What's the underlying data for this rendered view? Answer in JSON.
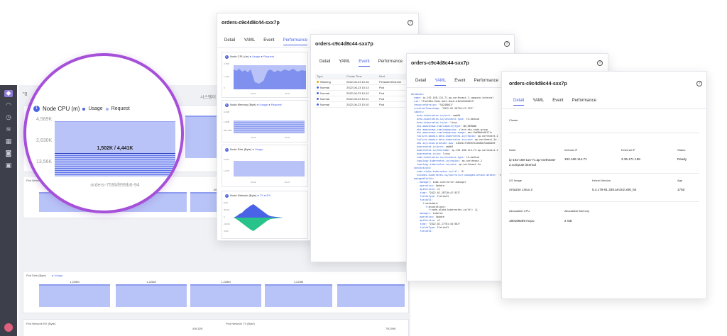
{
  "colors": {
    "accent": "#4a63e6",
    "lens_border": "#a64fd9",
    "chart_fill": "#b9c3f8",
    "request_dot": "#a5b3f5",
    "warning": "#f2a900",
    "normal": "#4a63e6",
    "rail": "#3d3f4b"
  },
  "rail": {
    "icons": [
      "logo-icon",
      "dashboard-icon",
      "clock-icon",
      "stack-icon",
      "chart-icon",
      "bell-icon",
      "settings-icon"
    ]
  },
  "dashboard": {
    "header": "\"0",
    "right_label": "시스템이",
    "panel_memory": {
      "title": "Pod Memory (Byte)",
      "legend": "● Usage ● Request",
      "values": [
        "401.31M / 536.87M",
        "401.31M / 536.87M",
        "401.31M / 536.87M"
      ]
    },
    "panel_disk": {
      "title": "Pod Disk (Byte)",
      "legend": "● Usage",
      "values": [
        "1,228M",
        "1,228M",
        "1,228M",
        "1,228M"
      ]
    },
    "panel_network": {
      "title": "Pod Network RX (Byte)",
      "title2": "Pod Network TX (Byte)",
      "values": [
        "406,52K",
        "750,59K"
      ]
    }
  },
  "lens": {
    "title": "Node CPU (m)",
    "legend_usage": "Usage",
    "legend_request": "Request",
    "yticks": [
      "4,589K",
      "2,630K",
      "13,56K"
    ],
    "value_label": "1,502K / 4,441K",
    "pod_name": "orders-759bf899b6-94"
  },
  "popup_perf": {
    "title": "orders-c9c4d8c44-sxx7p",
    "help": "?",
    "tabs": [
      "Detail",
      "YAML",
      "Event",
      "Performance"
    ],
    "charts": [
      {
        "num": "1",
        "title": "Node CPU (m)",
        "legend": "● Usage ● Request",
        "yticks": [
          "2.79K",
          "1.34K",
          "0"
        ],
        "xticks": [
          "10:32",
          "10:37"
        ]
      },
      {
        "num": "2",
        "title": "Node Memory (Byte)",
        "legend": "● Usage ● Request",
        "yticks": [
          "3.24B",
          "1.66B",
          "831.45M"
        ],
        "xticks": [
          "10:32",
          "10:37"
        ]
      },
      {
        "num": "3",
        "title": "Node Disk (Byte)",
        "legend": "● Usage",
        "yticks": [
          "2.05K",
          "1.07K"
        ],
        "xticks": [
          "10:32",
          "10:37"
        ]
      },
      {
        "num": "4",
        "title": "Node Network (Byte)",
        "legend": "● TX ● RX",
        "yticks": [
          "9.6K",
          "40.9K",
          "0",
          "-40.9K",
          "-9.6K"
        ],
        "xticks": [
          "10:32",
          "10:37"
        ]
      }
    ]
  },
  "popup_event": {
    "title": "orders-c9c4d8c44-sxx7p",
    "help": "?",
    "tabs": [
      "Detail",
      "YAML",
      "Event",
      "Performance"
    ],
    "columns": [
      "Type",
      "Create Time",
      "Kind"
    ],
    "rows": [
      {
        "type": "Warning",
        "time": "2022-06-23 10:16",
        "kind": "PersistentVolume"
      },
      {
        "type": "Normal",
        "time": "2022-06-23 10:13",
        "kind": "Pod"
      },
      {
        "type": "Normal",
        "time": "2022-06-23 10:12",
        "kind": "Pod"
      },
      {
        "type": "Normal",
        "time": "2022-06-23 10:11",
        "kind": "Pod"
      },
      {
        "type": "Normal",
        "time": "2022-06-23 10:10",
        "kind": "Pod"
      }
    ]
  },
  "popup_yaml": {
    "title": "orders-c9c4d8c44-sxx7p",
    "help": "?",
    "tabs": [
      "Detail",
      "YAML",
      "Event",
      "Performance"
    ],
    "lines": [
      "metadata:",
      "  name: ip-192-168-114-71.ap-northeast-2.compute.internal",
      "  uid: 77cbf68a-9d4e-4dc1-8ac0-d4b9d3d0b619",
      "  resourceVersion: \"54248841\"",
      "  creationTimestamp: \"2022-02-28T10:47:33Z\"",
      "  labels:",
      "    beta.kubernetes.io/arch: amd64",
      "    beta.kubernetes.io/instance-type: t3.medium",
      "    beta.kubernetes.io/os: linux",
      "    eks.amazonaws.com/capacityType: ON_DEMAND",
      "    eks.amazonaws.com/nodegroup: clara-eks-node-group",
      "    eks.amazonaws.com/nodegroup-image: ami-0a68b6c6017fc",
      "    failure-domain.beta.kubernetes.io/region: ap-northeast-2",
      "    failure-domain.beta.kubernetes.io/zone: ap-northeast-2a",
      "    k8s.io/cloud-provider-aws: 44e82cf3696701de06072b0b009",
      "    kubernetes.io/arch: amd64",
      "    kubernetes.io/hostname: ip-192-168-114-71.ap-northeast-2",
      "    kubernetes.io/os: linux",
      "    node.kubernetes.io/instance-type: t3.medium",
      "    topology.kubernetes.io/region: ap-northeast-2",
      "    topology.kubernetes.io/zone: ap-northeast-2a",
      "  annotations:",
      "    node.alpha.kubernetes.io/ttl: '0'",
      "    volumes.kubernetes.io/controller-managed-attach-detach: 'true'",
      "  managedFields:",
      "    - manager: kube-controller-manager",
      "      operation: Update",
      "      apiVersion: v1",
      "      time: \"2022-02-28T10:47:33Z\"",
      "      fieldsType: FieldsV1",
      "      fieldsV1:",
      "        f:metadata:",
      "          f:annotations:",
      "            f:node.alpha.kubernetes.io/ttl: {}",
      "    - manager: kubelet",
      "      operation: Update",
      "      apiVersion: v1",
      "      time: \"2022-02-17T01:44:58Z\"",
      "      fieldsType: FieldsV1",
      "      fieldsV1:"
    ]
  },
  "popup_detail": {
    "title": "orders-c9c4d8c44-sxx7p",
    "help": "?",
    "tabs": [
      "Detail",
      "YAML",
      "Event",
      "Performance"
    ],
    "cluster_label": "Cluster",
    "node_label": "Node",
    "node_value": "ip-192-168-114-71.ap-northeast-2.compute.internal",
    "internal_ip_label": "Internal IP",
    "internal_ip_value": "192.168.114.71",
    "external_ip_label": "External IP",
    "external_ip_value": "3.35.171.188",
    "status_label": "Status",
    "status_value": "Ready",
    "os_image_label": "OS Image",
    "os_image_value": "Amazon Linux 2",
    "kernel_label": "Kernel Version",
    "kernel_value": "5.4.176-91.338.amzn2.x86_64",
    "age_label": "Age",
    "age_value": "176d",
    "alloc_cpu_label": "Allocatable CPU",
    "alloc_cpu_value": "180189289 mcpu",
    "alloc_mem_label": "Allocatable Memory",
    "alloc_mem_value": "2 GB"
  }
}
